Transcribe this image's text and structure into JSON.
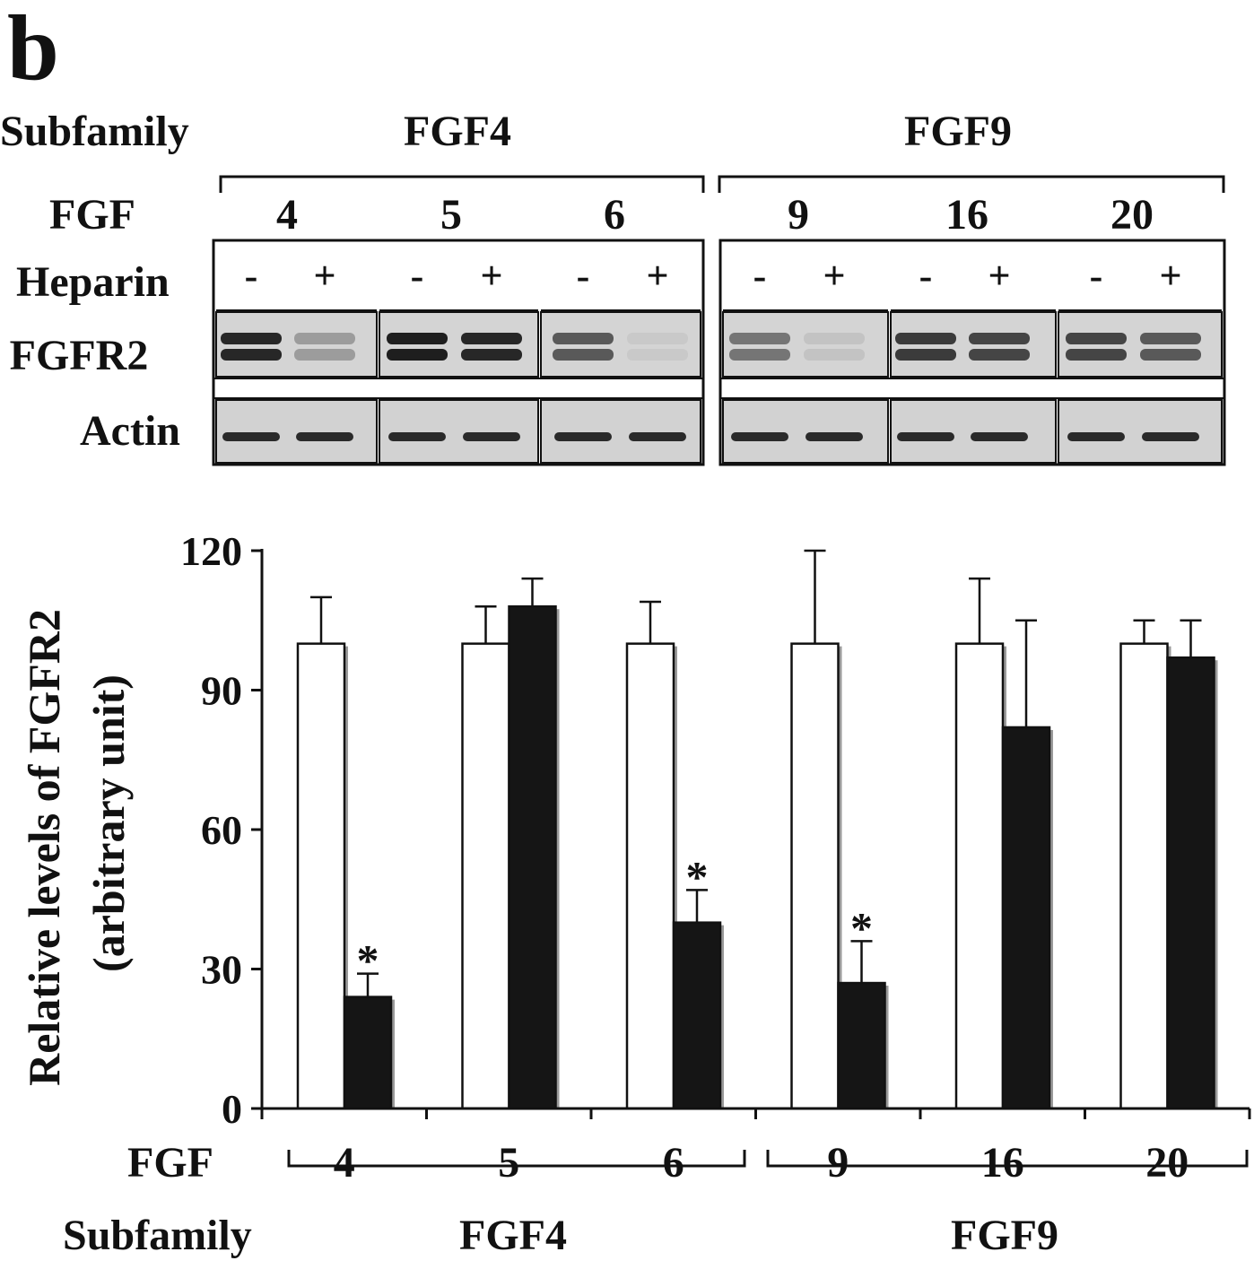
{
  "figure": {
    "panel_letter": "b",
    "blot": {
      "subfamily_label": "Subfamily",
      "fgf_label": "FGF",
      "heparin_label": "Heparin",
      "subfamilies": [
        "FGF4",
        "FGF9"
      ],
      "fgf_values": [
        "4",
        "5",
        "6",
        "9",
        "16",
        "20"
      ],
      "heparin_signs": [
        "-",
        "+",
        "-",
        "+",
        "-",
        "+",
        "-",
        "+",
        "-",
        "+",
        "-",
        "+"
      ],
      "rows": [
        "FGFR2",
        "Actin"
      ],
      "fgfr2_intensity": [
        0.95,
        0.35,
        1.0,
        0.95,
        0.7,
        0.12,
        0.55,
        0.15,
        0.85,
        0.8,
        0.8,
        0.7
      ]
    },
    "chart_axis": {
      "fgf_label": "FGF",
      "subfamily_label": "Subfamily",
      "subfamilies": [
        "FGF4",
        "FGF9"
      ]
    }
  },
  "chart_data": {
    "type": "bar",
    "ylabel": "Relative levels of FGFR2 (arbitrary unit)",
    "ylabel_lines": [
      "Relative levels of FGFR2",
      "(arbitrary unit)"
    ],
    "xlabel": "FGF",
    "categories": [
      "4",
      "5",
      "6",
      "9",
      "16",
      "20"
    ],
    "ylim": [
      0,
      120
    ],
    "yticks": [
      "0",
      "30",
      "60",
      "90",
      "120"
    ],
    "legend": "none",
    "grid": false,
    "series": [
      {
        "values": [
          100,
          100,
          100,
          100,
          100,
          100
        ],
        "errors": [
          10,
          8,
          9,
          20,
          14,
          5
        ],
        "color": "#ffffff"
      },
      {
        "values": [
          24,
          108,
          40,
          27,
          82,
          97
        ],
        "errors": [
          5,
          6,
          7,
          9,
          23,
          8
        ],
        "color": "#151515"
      }
    ],
    "annotations": [
      {
        "text": "*",
        "category": "4",
        "series_index": 1
      },
      {
        "text": "*",
        "category": "6",
        "series_index": 1
      },
      {
        "text": "*",
        "category": "9",
        "series_index": 1
      }
    ],
    "groups": [
      {
        "label": "FGF4",
        "categories": [
          "4",
          "5",
          "6"
        ]
      },
      {
        "label": "FGF9",
        "categories": [
          "9",
          "16",
          "20"
        ]
      }
    ]
  }
}
